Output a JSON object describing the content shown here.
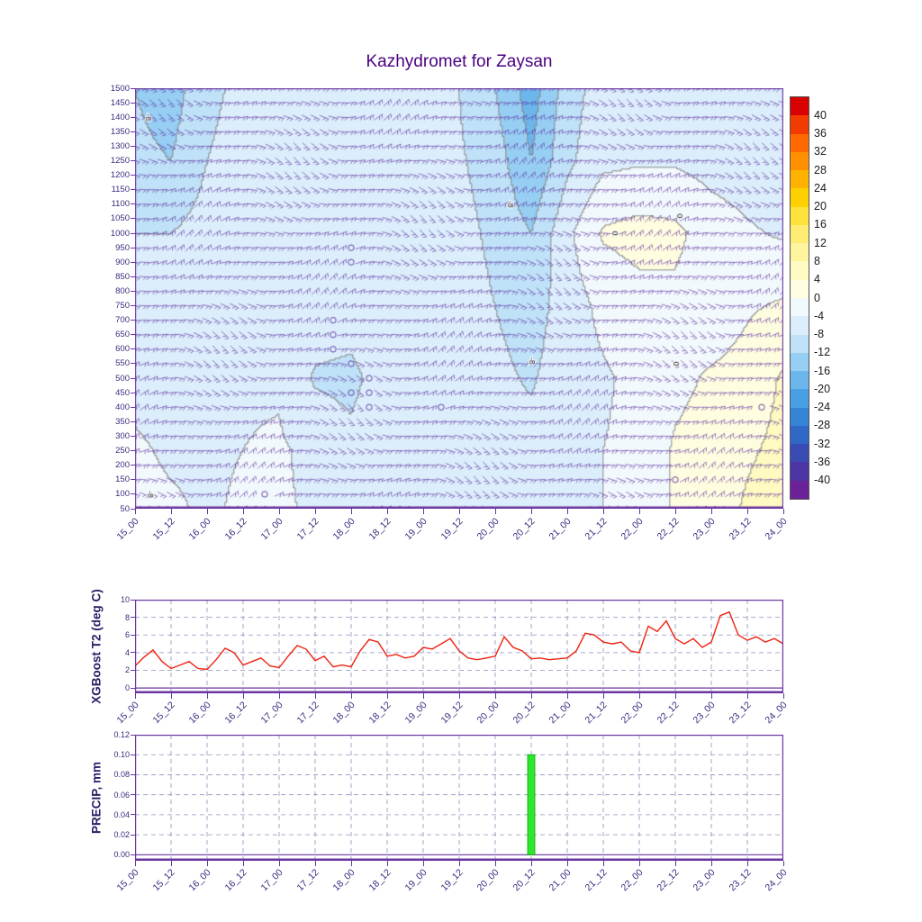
{
  "title": "Kazhydromet for Zaysan",
  "colors": {
    "title": "#4b0082",
    "axis": "#6a35a0",
    "tick_label": "#3b2a7e",
    "grid": "#9090c0",
    "t2_line": "#ee2211",
    "precip_bar": "#2ee62e",
    "precip_bar_edge": "#00aa00",
    "wind_barb": "#5b2da0",
    "contour_line": "#808080",
    "contour_label": "#222222",
    "colorbar_label": "#1a1a1a"
  },
  "time_labels": [
    "15_00",
    "15_12",
    "16_00",
    "16_12",
    "17_00",
    "17_12",
    "18_00",
    "18_12",
    "19_00",
    "19_12",
    "20_00",
    "20_12",
    "21_00",
    "21_12",
    "22_00",
    "22_12",
    "23_00",
    "23_12",
    "24_00"
  ],
  "chart_data": [
    {
      "type": "heatmap",
      "name": "temperature-wind-time-height-section",
      "title": "Kazhydromet for Zaysan",
      "x_ticklabels": [
        "15_00",
        "15_12",
        "16_00",
        "16_12",
        "17_00",
        "17_12",
        "18_00",
        "18_12",
        "19_00",
        "19_12",
        "20_00",
        "20_12",
        "21_00",
        "21_12",
        "22_00",
        "22_12",
        "23_00",
        "23_12",
        "24_00"
      ],
      "y_ticks": [
        1500,
        1450,
        1400,
        1350,
        1300,
        1250,
        1200,
        1150,
        1100,
        1050,
        1000,
        950,
        900,
        850,
        800,
        750,
        700,
        650,
        600,
        550,
        500,
        450,
        400,
        350,
        300,
        250,
        200,
        150,
        100,
        50
      ],
      "y_range": [
        50,
        1500
      ],
      "x_range_12h_units": [
        0,
        18
      ],
      "grid_levels": [
        1500,
        1250,
        1000,
        750,
        500,
        250,
        50
      ],
      "temperature_grid": [
        [
          -12,
          -14,
          -9,
          -7,
          -6.5,
          -6,
          -6,
          -6,
          -7,
          -8,
          -12,
          -18,
          -10,
          -6,
          -5.5,
          -5.5,
          -7,
          -6.5,
          -7
        ],
        [
          -11,
          -12,
          -8,
          -6.5,
          -6,
          -6,
          -6,
          -6,
          -6.5,
          -7.5,
          -10,
          -16,
          -9,
          -5,
          -4.5,
          -4.5,
          -5.5,
          -6,
          -6.5
        ],
        [
          -8,
          -8,
          -6.5,
          -5.5,
          -5.5,
          -5.5,
          -6,
          -5.5,
          -6,
          -6.5,
          -9,
          -12,
          -5,
          0.5,
          1.5,
          1,
          -2,
          -3.5,
          -4.5
        ],
        [
          -6.5,
          -6.5,
          -5.5,
          -5,
          -5,
          -5.5,
          -6,
          -5.5,
          -7,
          -6,
          -8,
          -10,
          -6,
          -3,
          -1.5,
          -1,
          -2.5,
          -0.5,
          0.5
        ],
        [
          -5,
          -5.5,
          -5,
          -4.5,
          -4.5,
          -8.5,
          -9,
          -6,
          -6.5,
          -6,
          -7,
          -8.5,
          -5.5,
          -4.5,
          -3,
          -1,
          0.5,
          1.5,
          4.5
        ],
        [
          -3.5,
          -4.5,
          -4.5,
          -4,
          -3.5,
          -5,
          -7,
          -5,
          -4.5,
          -4.5,
          -5.5,
          -6.5,
          -4.5,
          -4,
          -3,
          0.5,
          1.5,
          3.5,
          5
        ],
        [
          -3,
          -3.5,
          -4.5,
          -3.5,
          -3.5,
          -4.5,
          -5,
          -5.5,
          -4.5,
          -4.5,
          -5,
          -5.5,
          -4.5,
          -4,
          -3,
          0.5,
          2,
          4.5,
          6
        ]
      ],
      "contour_labels": [
        {
          "t": 0.35,
          "level": 1400,
          "text": "-8"
        },
        {
          "t": 0.4,
          "level": 100,
          "text": "-8"
        },
        {
          "t": 10.4,
          "level": 1100,
          "text": "-8"
        },
        {
          "t": 11.0,
          "level": 560,
          "text": "-8"
        },
        {
          "t": 13.3,
          "level": 1000,
          "text": "0"
        },
        {
          "t": 15.1,
          "level": 1060,
          "text": "0"
        },
        {
          "t": 15.0,
          "level": 550,
          "text": "0"
        }
      ],
      "calm_circles": [
        {
          "t": 5.5,
          "level": 700
        },
        {
          "t": 5.5,
          "level": 650
        },
        {
          "t": 5.5,
          "level": 600
        },
        {
          "t": 6.0,
          "level": 950
        },
        {
          "t": 6.0,
          "level": 900
        },
        {
          "t": 6.0,
          "level": 550
        },
        {
          "t": 6.0,
          "level": 450
        },
        {
          "t": 6.5,
          "level": 500
        },
        {
          "t": 6.5,
          "level": 450
        },
        {
          "t": 6.5,
          "level": 400
        },
        {
          "t": 8.5,
          "level": 400
        },
        {
          "t": 3.6,
          "level": 100
        },
        {
          "t": 15.0,
          "level": 150
        },
        {
          "t": 17.4,
          "level": 400
        }
      ],
      "wind_barbs": {
        "time_step_hours": 3,
        "level_step_m": 50
      },
      "colorbar": {
        "ticks": [
          40,
          36,
          32,
          28,
          24,
          20,
          16,
          12,
          8,
          4,
          0,
          -4,
          -8,
          -12,
          -16,
          -20,
          -24,
          -28,
          -32,
          -36,
          -40
        ],
        "colors": [
          "#d80000",
          "#f23b00",
          "#ff6a00",
          "#ff9100",
          "#ffb300",
          "#ffd000",
          "#ffe23c",
          "#ffed73",
          "#fff59e",
          "#fffac1",
          "#fffde0",
          "#f2f9fd",
          "#dceefb",
          "#bfe2f8",
          "#97cef3",
          "#6cb6ec",
          "#47a0e4",
          "#3584d6",
          "#2f68c6",
          "#3a4cb4",
          "#4d35a5",
          "#6b2299"
        ]
      }
    },
    {
      "type": "line",
      "ylabel": "XGBoost T2 (deg C)",
      "yticks": [
        0,
        2,
        4,
        6,
        8,
        10
      ],
      "ylim": [
        0,
        10
      ],
      "x_step_hours": 3,
      "x_ticklabels": [
        "15_00",
        "15_12",
        "16_00",
        "16_12",
        "17_00",
        "17_12",
        "18_00",
        "18_12",
        "19_00",
        "19_12",
        "20_00",
        "20_12",
        "21_00",
        "21_12",
        "22_00",
        "22_12",
        "23_00",
        "23_12",
        "24_00"
      ],
      "series": [
        {
          "name": "XGBoost T2",
          "color": "#ee2211",
          "values": [
            2.5,
            3.5,
            4.3,
            3.0,
            2.2,
            2.6,
            3.0,
            2.2,
            2.1,
            3.2,
            4.5,
            4.0,
            2.6,
            3.0,
            3.4,
            2.5,
            2.3,
            3.6,
            4.8,
            4.4,
            3.1,
            3.6,
            2.4,
            2.6,
            2.4,
            4.2,
            5.5,
            5.2,
            3.6,
            3.8,
            3.4,
            3.6,
            4.6,
            4.4,
            5.0,
            5.6,
            4.2,
            3.4,
            3.2,
            3.4,
            3.6,
            5.8,
            4.6,
            4.2,
            3.3,
            3.4,
            3.2,
            3.3,
            3.4,
            4.2,
            6.2,
            6.0,
            5.2,
            5.0,
            5.2,
            4.2,
            4.0,
            7.0,
            6.4,
            7.6,
            5.6,
            5.0,
            5.6,
            4.6,
            5.2,
            8.2,
            8.6,
            6.0,
            5.4,
            5.8,
            5.2,
            5.6,
            5.0
          ]
        }
      ]
    },
    {
      "type": "bar",
      "ylabel": "PRECIP, mm",
      "ytick_labels": [
        "0.00",
        "0.02",
        "0.04",
        "0.06",
        "0.08",
        "0.10",
        "0.12"
      ],
      "ylim": [
        0,
        0.12
      ],
      "x_ticklabels": [
        "15_00",
        "15_12",
        "16_00",
        "16_12",
        "17_00",
        "17_12",
        "18_00",
        "18_12",
        "19_00",
        "19_12",
        "20_00",
        "20_12",
        "21_00",
        "21_12",
        "22_00",
        "22_12",
        "23_00",
        "23_12",
        "24_00"
      ],
      "bars": [
        {
          "time": "20_12",
          "t_index_12h": 11,
          "value": 0.1
        }
      ]
    }
  ]
}
